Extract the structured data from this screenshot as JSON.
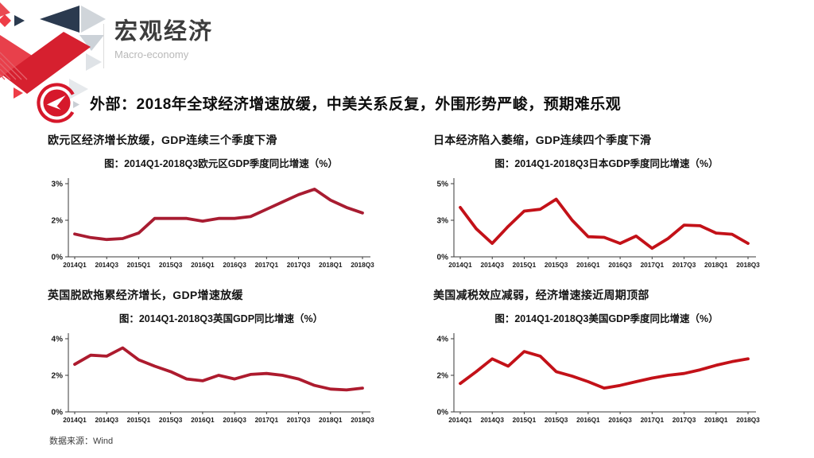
{
  "brand": {
    "title": "宏观经济",
    "subtitle": "Macro-economy"
  },
  "headline": "外部：2018年全球经济增速放缓，中美关系反复，外围形势严峻，预期难乐观",
  "footer": {
    "source_note": "数据来源：Wind"
  },
  "colors": {
    "accent_red": "#d6182b",
    "logo_navy": "#2b3a4f",
    "logo_gray": "#d0d5da"
  },
  "chart_data": [
    {
      "type": "line",
      "section_title": "欧元区经济增长放缓，GDP连续三个季度下滑",
      "title": "图：2014Q1-2018Q3欧元区GDP季度同比增速（%）",
      "categories": [
        "2014Q1",
        "2014Q2",
        "2014Q3",
        "2014Q4",
        "2015Q1",
        "2015Q2",
        "2015Q3",
        "2015Q4",
        "2016Q1",
        "2016Q2",
        "2016Q3",
        "2016Q4",
        "2017Q1",
        "2017Q2",
        "2017Q3",
        "2017Q4",
        "2018Q1",
        "2018Q2",
        "2018Q3"
      ],
      "values": [
        1.25,
        1.05,
        0.95,
        1.0,
        1.3,
        2.05,
        2.05,
        2.05,
        1.95,
        2.05,
        2.05,
        2.1,
        2.3,
        2.5,
        2.7,
        2.85,
        2.55,
        2.35,
        2.2
      ],
      "x_tick_labels": [
        "2014Q1",
        "2014Q3",
        "2015Q1",
        "2015Q3",
        "2016Q1",
        "2016Q3",
        "2017Q1",
        "2017Q3",
        "2018Q1",
        "2018Q3"
      ],
      "y_ticks": [
        {
          "label": "3%",
          "value": 3
        },
        {
          "label": "2%",
          "value": 2
        },
        {
          "label": "0%",
          "value": 0
        }
      ],
      "ylim": [
        0,
        3
      ],
      "grid": false,
      "legend": null,
      "line_color": "#a81c31"
    },
    {
      "type": "line",
      "section_title": "日本经济陷入萎缩，GDP连续四个季度下滑",
      "title": "图：2014Q1-2018Q3日本GDP季度同比增速（%）",
      "categories": [
        "2014Q1",
        "2014Q2",
        "2014Q3",
        "2014Q4",
        "2015Q1",
        "2015Q2",
        "2015Q3",
        "2015Q4",
        "2016Q1",
        "2016Q2",
        "2016Q3",
        "2016Q4",
        "2017Q1",
        "2017Q2",
        "2017Q3",
        "2017Q4",
        "2018Q1",
        "2018Q2",
        "2018Q3"
      ],
      "values": [
        3.7,
        2.3,
        1.1,
        2.5,
        3.5,
        3.6,
        4.15,
        3.0,
        1.65,
        1.6,
        1.1,
        1.7,
        0.7,
        1.5,
        2.6,
        2.55,
        1.95,
        1.85,
        1.1
      ],
      "x_tick_labels": [
        "2014Q1",
        "2014Q3",
        "2015Q1",
        "2015Q3",
        "2016Q1",
        "2016Q3",
        "2017Q1",
        "2017Q3",
        "2018Q1",
        "2018Q3"
      ],
      "y_ticks": [
        {
          "label": "5%",
          "value": 5
        },
        {
          "label": "3%",
          "value": 3
        },
        {
          "label": "0%",
          "value": 0
        }
      ],
      "ylim": [
        0,
        5
      ],
      "grid": false,
      "legend": null,
      "line_color": "#c31118"
    },
    {
      "type": "line",
      "section_title": "英国脱欧拖累经济增长，GDP增速放缓",
      "title": "图：2014Q1-2018Q3英国GDP同比增速（%）",
      "categories": [
        "2014Q1",
        "2014Q2",
        "2014Q3",
        "2014Q4",
        "2015Q1",
        "2015Q2",
        "2015Q3",
        "2015Q4",
        "2016Q1",
        "2016Q2",
        "2016Q3",
        "2016Q4",
        "2017Q1",
        "2017Q2",
        "2017Q3",
        "2017Q4",
        "2018Q1",
        "2018Q2",
        "2018Q3"
      ],
      "values": [
        2.6,
        3.1,
        3.05,
        3.5,
        2.85,
        2.5,
        2.2,
        1.8,
        1.7,
        2.0,
        1.8,
        2.05,
        2.1,
        2.0,
        1.8,
        1.45,
        1.25,
        1.2,
        1.3
      ],
      "x_tick_labels": [
        "2014Q1",
        "2014Q3",
        "2015Q1",
        "2015Q3",
        "2016Q1",
        "2016Q3",
        "2017Q1",
        "2017Q3",
        "2018Q1",
        "2018Q3"
      ],
      "y_ticks": [
        {
          "label": "4%",
          "value": 4
        },
        {
          "label": "2%",
          "value": 2
        },
        {
          "label": "0%",
          "value": 0
        }
      ],
      "ylim": [
        0,
        4
      ],
      "grid": false,
      "legend": null,
      "line_color": "#ad1b2e"
    },
    {
      "type": "line",
      "section_title": "美国减税效应减弱，经济增速接近周期顶部",
      "title": "图：2014Q1-2018Q3美国GDP季度同比增速（%）",
      "categories": [
        "2014Q1",
        "2014Q2",
        "2014Q3",
        "2014Q4",
        "2015Q1",
        "2015Q2",
        "2015Q3",
        "2015Q4",
        "2016Q1",
        "2016Q2",
        "2016Q3",
        "2016Q4",
        "2017Q1",
        "2017Q2",
        "2017Q3",
        "2017Q4",
        "2018Q1",
        "2018Q2",
        "2018Q3"
      ],
      "values": [
        1.55,
        2.2,
        2.9,
        2.5,
        3.3,
        3.05,
        2.2,
        1.95,
        1.65,
        1.3,
        1.45,
        1.65,
        1.85,
        2.0,
        2.1,
        2.3,
        2.55,
        2.75,
        2.9
      ],
      "x_tick_labels": [
        "2014Q1",
        "2014Q3",
        "2015Q1",
        "2015Q3",
        "2016Q1",
        "2016Q3",
        "2017Q1",
        "2017Q3",
        "2018Q1",
        "2018Q3"
      ],
      "y_ticks": [
        {
          "label": "4%",
          "value": 4
        },
        {
          "label": "2%",
          "value": 2
        },
        {
          "label": "0%",
          "value": 0
        }
      ],
      "ylim": [
        0,
        4
      ],
      "grid": false,
      "legend": null,
      "line_color": "#c31118"
    }
  ]
}
